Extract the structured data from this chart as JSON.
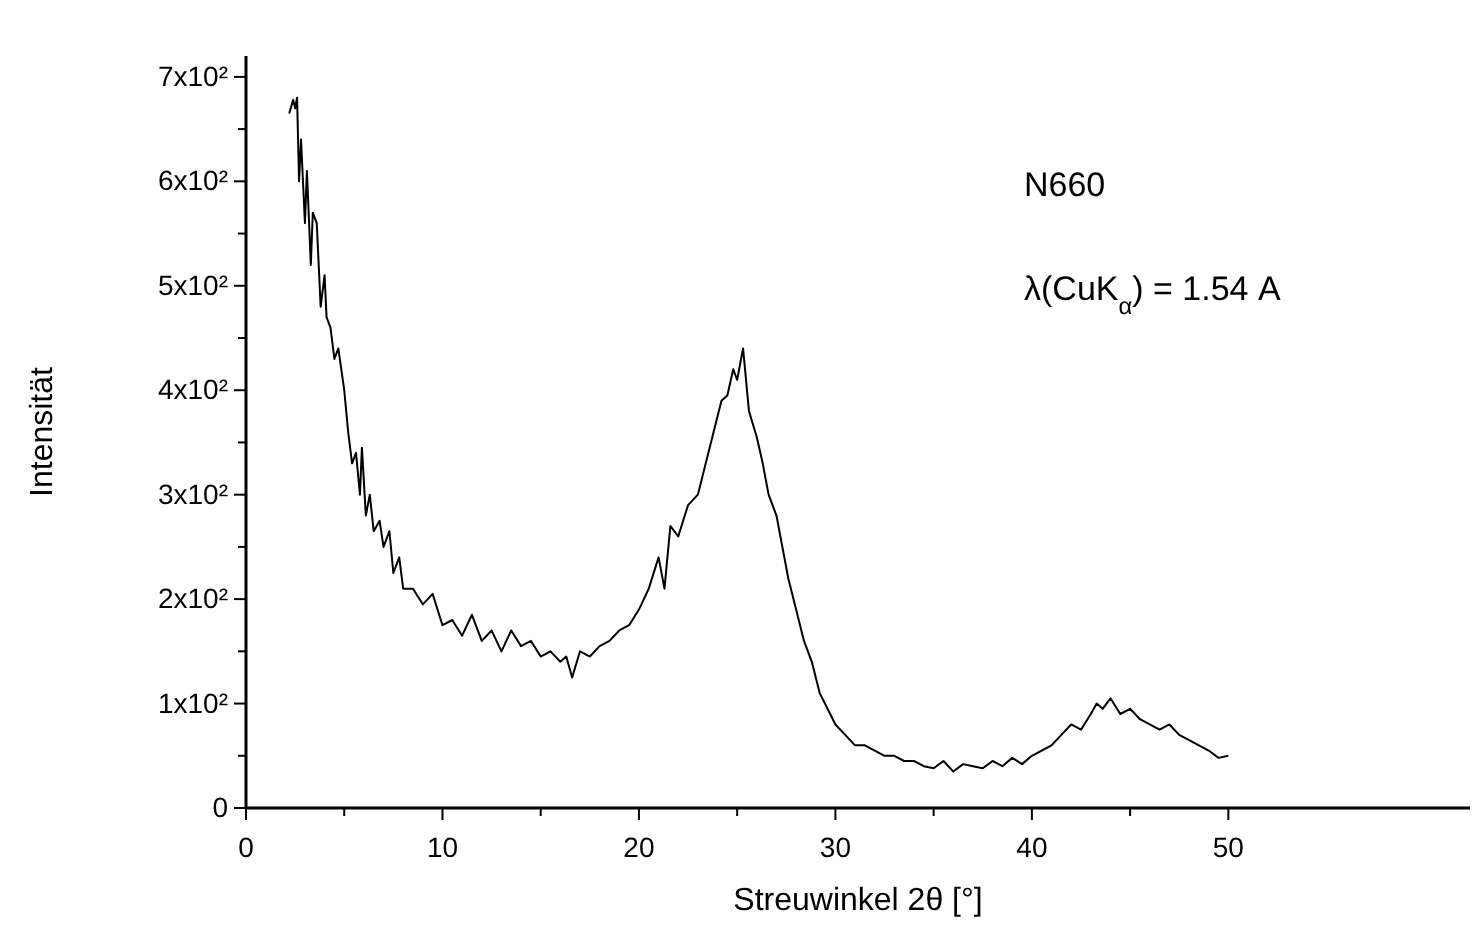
{
  "chart_data": {
    "type": "line",
    "xlabel": "Streuwinkel  2θ  [°]",
    "ylabel": "Intensität",
    "annotations": [
      {
        "text": "N660"
      },
      {
        "text": "λ(CuK$_{α}$) = 1.54 A"
      }
    ],
    "xlim": [
      0,
      62.3
    ],
    "ylim": [
      0,
      720
    ],
    "xticks": [
      0,
      {
        "value": 5,
        "label": null
      },
      10,
      {
        "value": 15,
        "label": null
      },
      20,
      {
        "value": 25,
        "label": null
      },
      30,
      {
        "value": 35,
        "label": null
      },
      40,
      {
        "value": 45,
        "label": null
      },
      50
    ],
    "yticks": [
      0,
      {
        "value": 50,
        "label": null
      },
      {
        "value": 100,
        "label": "1x10²"
      },
      {
        "value": 150,
        "label": null
      },
      {
        "value": 200,
        "label": "2x10²"
      },
      {
        "value": 250,
        "label": null
      },
      {
        "value": 300,
        "label": "3x10²"
      },
      {
        "value": 350,
        "label": null
      },
      {
        "value": 400,
        "label": "4x10²"
      },
      {
        "value": 450,
        "label": null
      },
      {
        "value": 500,
        "label": "5x10²"
      },
      {
        "value": 550,
        "label": null
      },
      {
        "value": 600,
        "label": "6x10²"
      },
      {
        "value": 650,
        "label": null
      },
      {
        "value": 700,
        "label": "7x10²"
      }
    ],
    "grid": false,
    "marker": "none",
    "line_style": "solid",
    "series": [
      {
        "color": "#000000",
        "x": [
          2.2,
          2.4,
          2.5,
          2.6,
          2.7,
          2.8,
          3.0,
          3.1,
          3.3,
          3.4,
          3.6,
          3.8,
          4.0,
          4.1,
          4.3,
          4.5,
          4.7,
          5.0,
          5.2,
          5.4,
          5.6,
          5.8,
          5.9,
          6.1,
          6.3,
          6.5,
          6.8,
          7.0,
          7.3,
          7.5,
          7.8,
          8.0,
          8.5,
          9.0,
          9.5,
          10.0,
          10.5,
          11.0,
          11.5,
          12.0,
          12.5,
          13.0,
          13.5,
          14.0,
          14.5,
          15.0,
          15.5,
          16.0,
          16.3,
          16.6,
          17.0,
          17.5,
          18.0,
          18.5,
          19.0,
          19.5,
          20.0,
          20.5,
          21.0,
          21.3,
          21.6,
          22.0,
          22.5,
          23.0,
          23.4,
          23.8,
          24.2,
          24.5,
          24.8,
          25.0,
          25.3,
          25.6,
          26.0,
          26.3,
          26.6,
          27.0,
          27.3,
          27.6,
          28.0,
          28.4,
          28.8,
          29.2,
          29.6,
          30.0,
          30.5,
          31.0,
          31.5,
          32.0,
          32.5,
          33.0,
          33.5,
          34.0,
          34.5,
          35.0,
          35.5,
          36.0,
          36.5,
          37.0,
          37.5,
          38.0,
          38.5,
          39.0,
          39.5,
          40.0,
          40.5,
          41.0,
          41.5,
          42.0,
          42.5,
          43.0,
          43.3,
          43.6,
          44.0,
          44.5,
          45.0,
          45.5,
          46.0,
          46.5,
          47.0,
          47.5,
          48.0,
          48.5,
          49.0,
          49.5,
          50.0
        ],
        "values": [
          665,
          678,
          670,
          680,
          600,
          640,
          560,
          610,
          520,
          570,
          560,
          480,
          510,
          470,
          460,
          430,
          440,
          400,
          360,
          330,
          340,
          300,
          345,
          280,
          300,
          265,
          275,
          250,
          265,
          225,
          240,
          210,
          210,
          195,
          205,
          175,
          180,
          165,
          185,
          160,
          170,
          150,
          170,
          155,
          160,
          145,
          150,
          140,
          145,
          125,
          150,
          145,
          155,
          160,
          170,
          175,
          190,
          210,
          240,
          210,
          270,
          260,
          290,
          300,
          330,
          360,
          390,
          395,
          420,
          410,
          440,
          380,
          355,
          330,
          300,
          280,
          250,
          220,
          190,
          160,
          140,
          110,
          95,
          80,
          70,
          60,
          60,
          55,
          50,
          50,
          45,
          45,
          40,
          38,
          45,
          35,
          42,
          40,
          38,
          45,
          40,
          48,
          42,
          50,
          55,
          60,
          70,
          80,
          75,
          90,
          100,
          95,
          105,
          90,
          95,
          85,
          80,
          75,
          80,
          70,
          65,
          60,
          55,
          48,
          50
        ]
      }
    ]
  }
}
